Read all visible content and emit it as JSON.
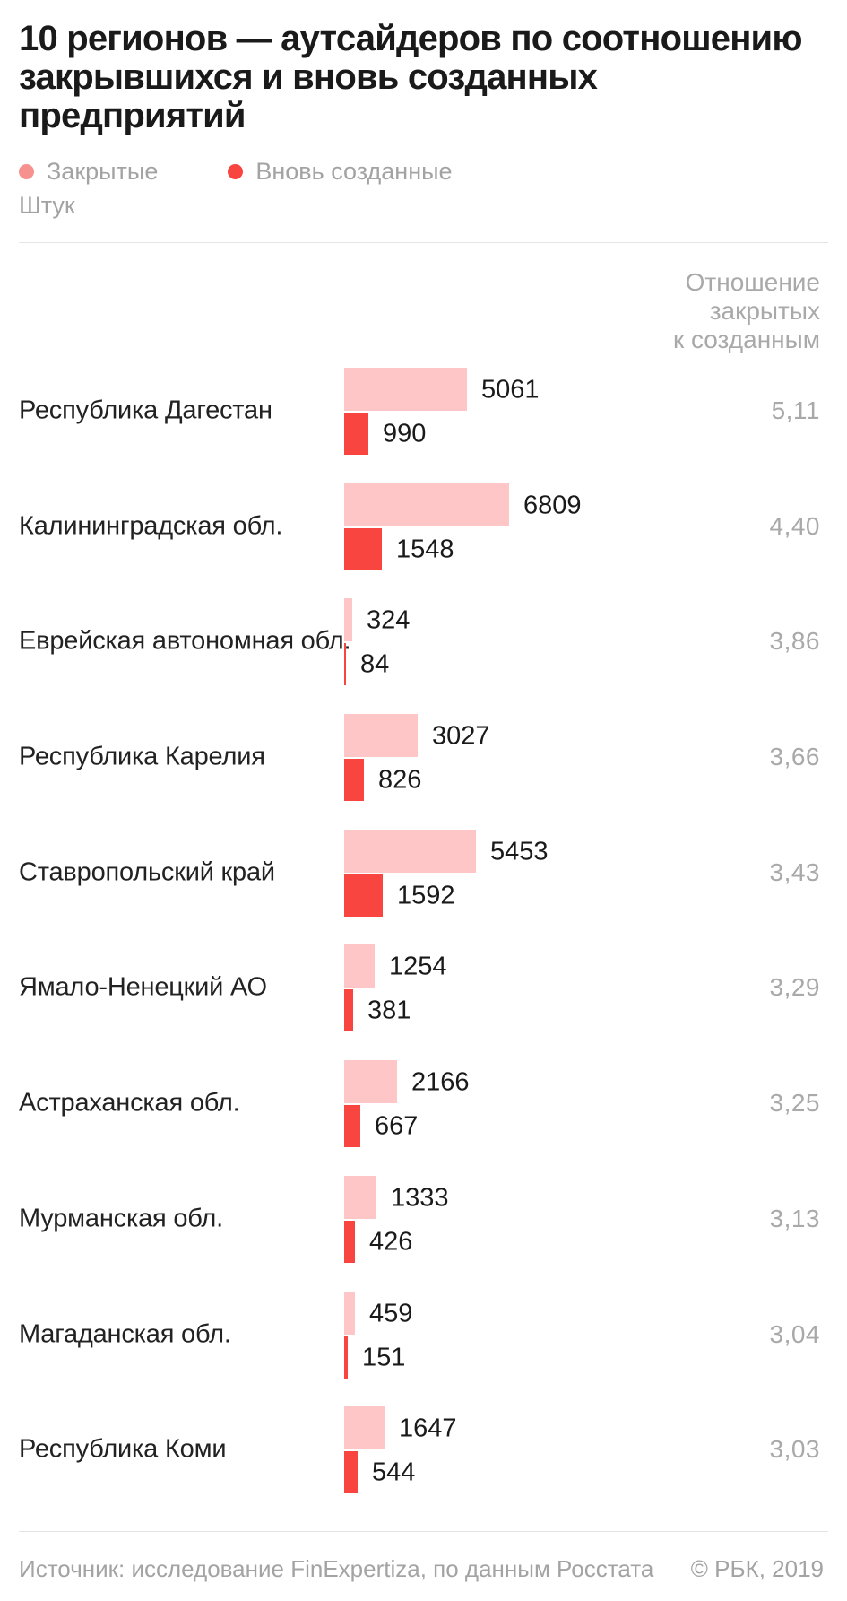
{
  "header": {
    "title_lines": [
      "10 регионов — аутсайдеров по соотношению",
      "закрывшихся и вновь созданных",
      "предприятий"
    ],
    "unit_label": "Штук"
  },
  "legend": {
    "closed": {
      "label": "Закрытые",
      "color": "#F7918F"
    },
    "created": {
      "label": "Вновь созданные",
      "color": "#F8453F"
    }
  },
  "ratio_header_lines": [
    "Отношение",
    "закрытых",
    "к созданным"
  ],
  "colors": {
    "closed_bar": "#FEC6C7",
    "created_bar": "#F8453F",
    "title_text": "#1A1A1A",
    "label_text": "#222222",
    "muted_text": "#A3A3A3",
    "divider": "#E4E4E4",
    "background": "#FFFFFF"
  },
  "footer": {
    "source": "Источник: исследование FinExpertiza, по данным Росстата",
    "copyright": "© РБК, 2019"
  },
  "chart_data": {
    "type": "bar",
    "orientation": "horizontal",
    "title": "10 регионов — аутсайдеров по соотношению закрывшихся и вновь созданных предприятий",
    "unit": "Штук",
    "legend_position": "top",
    "grid": false,
    "xlim": [
      0,
      6809
    ],
    "categories": [
      "Республика Дагестан",
      "Калининградская обл.",
      "Еврейская автономная обл.",
      "Республика Карелия",
      "Ставропольский край",
      "Ямало-Ненецкий АО",
      "Астраханская обл.",
      "Мурманская обл.",
      "Магаданская обл.",
      "Республика Коми"
    ],
    "series": [
      {
        "name": "Закрытые",
        "values": [
          5061,
          6809,
          324,
          3027,
          5453,
          1254,
          2166,
          1333,
          459,
          1647
        ]
      },
      {
        "name": "Вновь созданные",
        "values": [
          990,
          1548,
          84,
          826,
          1592,
          381,
          667,
          426,
          151,
          544
        ]
      }
    ],
    "ratio_column_header": "Отношение закрытых к созданным",
    "ratio_labels": [
      "5,11",
      "4,40",
      "3,86",
      "3,66",
      "3,43",
      "3,29",
      "3,25",
      "3,13",
      "3,04",
      "3,03"
    ]
  }
}
